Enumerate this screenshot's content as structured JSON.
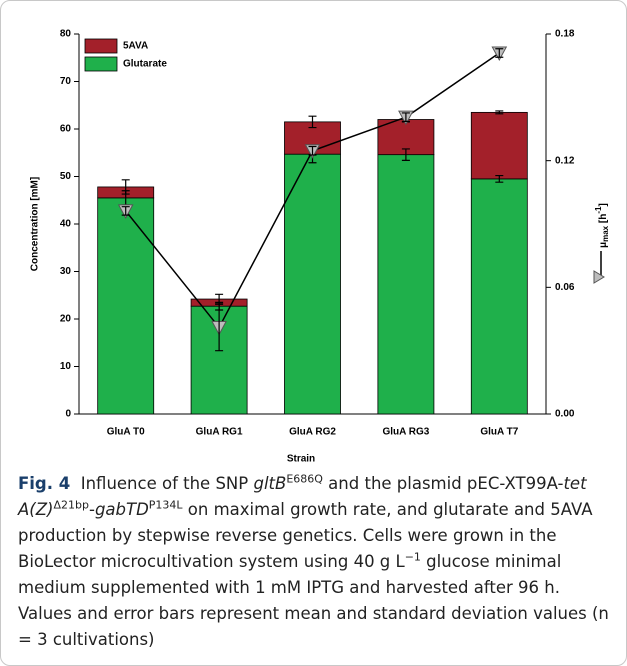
{
  "chart_data": {
    "type": "bar",
    "stacked": true,
    "xlabel": "Strain",
    "ylabel": "Concentration [mM]",
    "y2label_parts": [
      "μ",
      "max",
      " [h",
      "-1",
      "]"
    ],
    "categories": [
      "GluA T0",
      "GluA RG1",
      "GluA RG2",
      "GluA RG3",
      "GluA T7"
    ],
    "ylim": [
      0,
      80
    ],
    "yticks": [
      0,
      10,
      20,
      30,
      40,
      50,
      60,
      70,
      80
    ],
    "y2lim": [
      0,
      0.18
    ],
    "y2ticks": [
      {
        "value": 0,
        "label": "0.00"
      },
      {
        "value": 0.06,
        "label": "0.06"
      },
      {
        "value": 0.12,
        "label": "0.12"
      },
      {
        "value": 0.18,
        "label": "0.18"
      }
    ],
    "legend": "upper left",
    "series": [
      {
        "name": "Glutarate",
        "color": "#1fb04b",
        "values": [
          45.5,
          22.7,
          54.7,
          54.6,
          49.5
        ],
        "errors": [
          1.5,
          0.8,
          1.8,
          1.2,
          0.7
        ]
      },
      {
        "name": "5AVA",
        "color": "#a3202a",
        "values": [
          2.3,
          1.5,
          6.8,
          7.4,
          14.0
        ],
        "errors": [
          1.5,
          1.0,
          1.2,
          0.5,
          0.3
        ]
      },
      {
        "type": "line",
        "axis": "y2",
        "color": "#000000",
        "marker_color": "#bdbdbd",
        "values": [
          0.0962,
          0.041,
          0.1247,
          0.1406,
          0.171
        ],
        "errors": [
          0.002,
          0.011,
          0.002,
          0.002,
          0.002
        ]
      }
    ],
    "caption": [
      {
        "text": "Fig. 4",
        "style": "bold"
      },
      {
        "text": "  Influence of the SNP ",
        "style": "normal"
      },
      {
        "text": "gltB",
        "style": "italic"
      },
      {
        "text": "E686Q",
        "style": "sup"
      },
      {
        "text": " and the plasmid pEC-XT99A-",
        "style": "normal"
      },
      {
        "text": "tet A(Z)",
        "style": "italic"
      },
      {
        "text": "Δ21bp",
        "style": "sup"
      },
      {
        "text": "-",
        "style": "normal"
      },
      {
        "text": "gabTD",
        "style": "italic"
      },
      {
        "text": "P134L",
        "style": "sup"
      },
      {
        "text": " on maximal growth rate, and glutarate and 5AVA production by stepwise reverse genetics. Cells were grown in the BioLector microcultivation system using 40 g L",
        "style": "normal"
      },
      {
        "text": "−1",
        "style": "sup"
      },
      {
        "text": " glucose minimal medium supplemented with 1 mM IPTG and harvested after 96 h. Values and error bars represent mean and standard deviation values (n = 3 cultivations)",
        "style": "normal"
      }
    ]
  }
}
